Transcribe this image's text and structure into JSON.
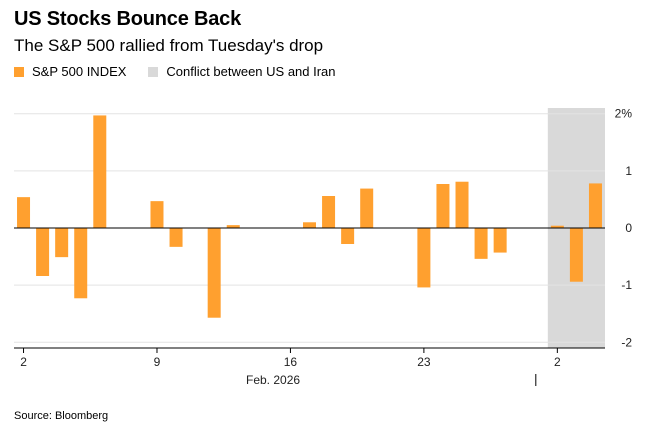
{
  "header": {
    "title": "US Stocks Bounce Back",
    "subtitle": "The S&P 500 rallied from Tuesday's drop"
  },
  "legend": [
    {
      "label": "S&P 500 INDEX",
      "color": "#ffa02f"
    },
    {
      "label": "Conflict between US and Iran",
      "color": "#d9d9d9"
    }
  ],
  "source": "Source: Bloomberg",
  "chart_data": {
    "type": "bar",
    "title": "US Stocks Bounce Back",
    "subtitle": "The S&P 500 rallied from Tuesday's drop",
    "xlabel": "",
    "ylabel": "",
    "ylim": [
      -2.1,
      2.1
    ],
    "y_ticks": [
      {
        "value": 2,
        "label": "2%"
      },
      {
        "value": 1,
        "label": "1"
      },
      {
        "value": 0,
        "label": "0"
      },
      {
        "value": -1,
        "label": "-1"
      },
      {
        "value": -2,
        "label": "-2"
      }
    ],
    "x_ticks": [
      {
        "day": 2,
        "label": "2"
      },
      {
        "day": 9,
        "label": "9"
      },
      {
        "day": 16,
        "label": "16"
      },
      {
        "day": 23,
        "label": "23"
      },
      {
        "day": 30,
        "label": "2"
      }
    ],
    "x_group_label": "Feb. 2026",
    "x_range_days": [
      1.5,
      32.5
    ],
    "month_boundary_day": 29.5,
    "shaded_range_days": [
      29.5,
      32.5
    ],
    "series": [
      {
        "name": "S&P 500 INDEX",
        "color": "#ffa02f",
        "points": [
          {
            "day": 2,
            "value": 0.54
          },
          {
            "day": 3,
            "value": -0.84
          },
          {
            "day": 4,
            "value": -0.51
          },
          {
            "day": 5,
            "value": -1.23
          },
          {
            "day": 6,
            "value": 1.97
          },
          {
            "day": 9,
            "value": 0.47
          },
          {
            "day": 10,
            "value": -0.33
          },
          {
            "day": 12,
            "value": -1.57
          },
          {
            "day": 13,
            "value": 0.05
          },
          {
            "day": 17,
            "value": 0.1
          },
          {
            "day": 18,
            "value": 0.56
          },
          {
            "day": 19,
            "value": -0.28
          },
          {
            "day": 20,
            "value": 0.69
          },
          {
            "day": 23,
            "value": -1.04
          },
          {
            "day": 24,
            "value": 0.77
          },
          {
            "day": 25,
            "value": 0.81
          },
          {
            "day": 26,
            "value": -0.54
          },
          {
            "day": 27,
            "value": -0.43
          },
          {
            "day": 30,
            "value": 0.04
          },
          {
            "day": 31,
            "value": -0.94
          },
          {
            "day": 32,
            "value": 0.78
          }
        ]
      }
    ]
  }
}
